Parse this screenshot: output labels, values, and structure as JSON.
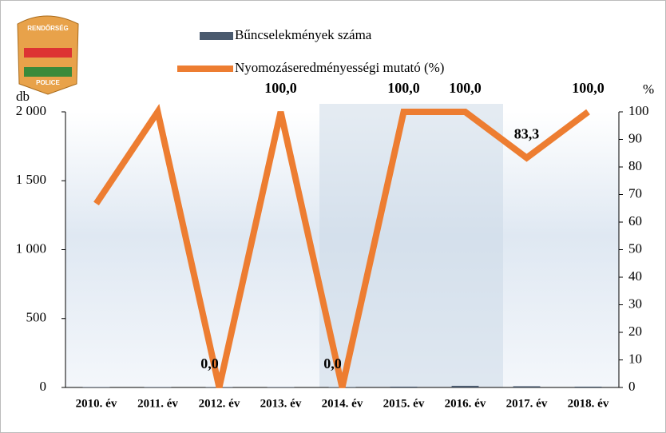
{
  "logo": {
    "top": "RENDŐRSÉG",
    "bottom": "POLICE"
  },
  "chart_data": {
    "type": "bar-line",
    "ylabel": "db",
    "y2label": "%",
    "categories": [
      "2010. év",
      "2011. év",
      "2012. év",
      "2013. év",
      "2014. év",
      "2015. év",
      "2016. év",
      "2017. év",
      "2018. év"
    ],
    "series": [
      {
        "name": "Bűncselekmények száma",
        "type": "bar",
        "color": "#4a5a6e",
        "values": [
          3,
          3,
          3,
          3,
          3,
          6,
          12,
          9,
          6
        ]
      },
      {
        "name": "Nyomozáseredményességi mutató (%)",
        "type": "line",
        "axis": "y2",
        "color": "#ed7d31",
        "values": [
          66.7,
          100,
          0,
          100,
          0,
          100,
          100,
          83.3,
          100
        ],
        "value_labels": [
          null,
          null,
          "0,0",
          "100,0",
          "0,0",
          "100,0",
          "100,0",
          "83,3",
          "100,0"
        ]
      }
    ],
    "ylim": [
      0,
      2000
    ],
    "yticks": [
      0,
      500,
      {
        "value": 1000,
        "label": "1 000"
      },
      {
        "value": 1500,
        "label": "1 500"
      },
      {
        "value": 2000,
        "label": "2 000"
      }
    ],
    "y2lim": [
      0,
      100
    ],
    "y2ticks": [
      0,
      10,
      20,
      30,
      40,
      50,
      60,
      70,
      80,
      90,
      100
    ]
  }
}
